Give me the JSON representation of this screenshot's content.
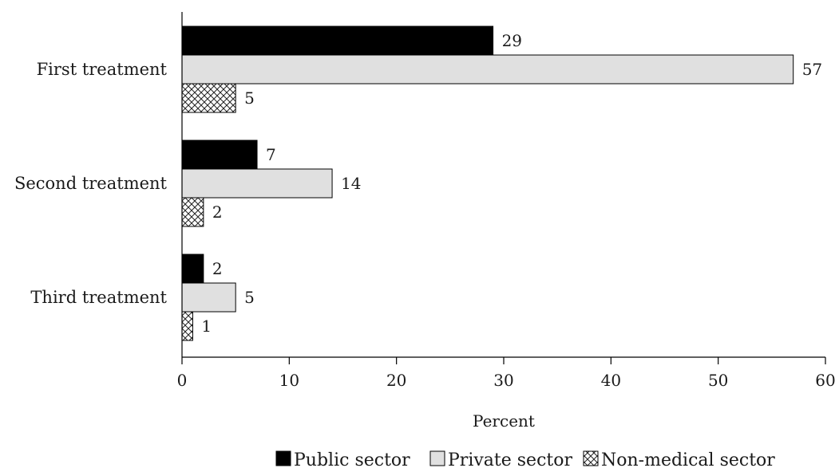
{
  "chart_data": {
    "type": "bar",
    "orientation": "horizontal",
    "categories": [
      "First treatment",
      "Second treatment",
      "Third treatment"
    ],
    "series": [
      {
        "name": "Public sector",
        "values": [
          29,
          7,
          2
        ],
        "color": "#000000",
        "pattern": "solid"
      },
      {
        "name": "Private sector",
        "values": [
          57,
          14,
          5
        ],
        "color": "#e0e0e0",
        "pattern": "solid"
      },
      {
        "name": "Non-medical sector",
        "values": [
          5,
          2,
          1
        ],
        "color": "#ffffff",
        "pattern": "crosshatch"
      }
    ],
    "xlabel": "Percent",
    "xlim": [
      0,
      60
    ],
    "xticks": [
      0,
      10,
      20,
      30,
      40,
      50,
      60
    ],
    "legend_position": "bottom",
    "grid": false
  }
}
